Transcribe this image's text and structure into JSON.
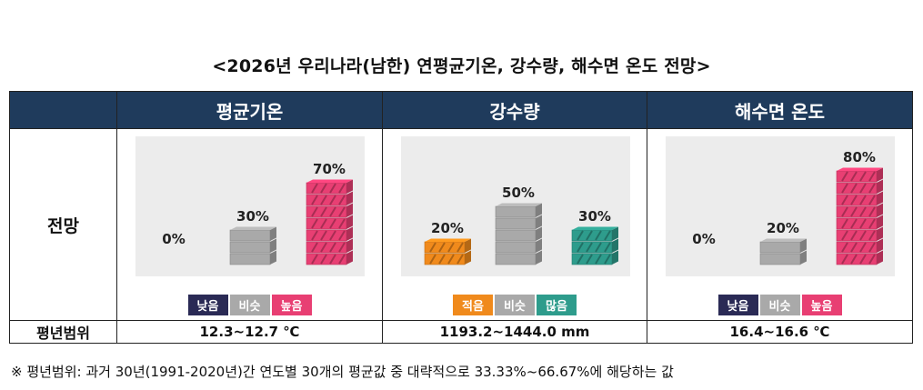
{
  "title": "<2026년 우리나라(남한) 연평균기온, 강수량, 해수면 온도 전망>",
  "columns": [
    "평균기온",
    "강수량",
    "해수면 온도"
  ],
  "row_labels": {
    "outlook": "전망",
    "normal_range": "평년범위"
  },
  "ranges": [
    "12.3~12.7 ℃",
    "1193.2~1444.0 mm",
    "16.4~16.6 ℃"
  ],
  "footnote": "※ 평년범위: 과거 30년(1991-2020년)간 연도별 30개의 평균값 중 대략적으로 33.33%~66.67%에 해당하는 값",
  "colors": {
    "header": "#1f3b5c",
    "low_dark": "#2a2a55",
    "gray": "#a9a9a9",
    "high_pink": "#e83f73",
    "less_orange": "#f08a1c",
    "more_teal": "#2e9c8c"
  },
  "chart_data": [
    {
      "type": "bar",
      "title": "평균기온",
      "categories": [
        "낮음",
        "비슷",
        "높음"
      ],
      "values": [
        0,
        30,
        70
      ],
      "labels": [
        "0%",
        "30%",
        "70%"
      ],
      "colors": [
        "#2a2a55",
        "#a9a9a9",
        "#e83f73"
      ]
    },
    {
      "type": "bar",
      "title": "강수량",
      "categories": [
        "적음",
        "비슷",
        "많음"
      ],
      "values": [
        20,
        50,
        30
      ],
      "labels": [
        "20%",
        "50%",
        "30%"
      ],
      "colors": [
        "#f08a1c",
        "#a9a9a9",
        "#2e9c8c"
      ]
    },
    {
      "type": "bar",
      "title": "해수면 온도",
      "categories": [
        "낮음",
        "비슷",
        "높음"
      ],
      "values": [
        0,
        20,
        80
      ],
      "labels": [
        "0%",
        "20%",
        "80%"
      ],
      "colors": [
        "#2a2a55",
        "#a9a9a9",
        "#e83f73"
      ]
    }
  ]
}
